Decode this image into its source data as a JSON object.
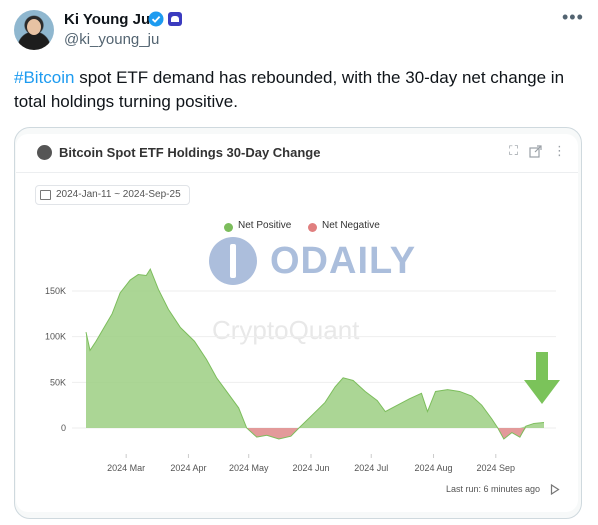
{
  "tweet": {
    "author_name": "Ki Young Ju",
    "handle": "@ki_young_ju",
    "more_icon": "more-horizontal-icon",
    "hashtag": "#Bitcoin",
    "text_rest": " spot ETF demand has rebounded, with the 30-day net change in total holdings turning positive."
  },
  "card": {
    "title": "Bitcoin Spot ETF Holdings 30-Day Change",
    "date_range": "2024-Jan-11 ~ 2024-Sep-25",
    "watermark_brand": "ODAILY",
    "watermark_source": "CryptoQuant",
    "last_run": "Last run: 6 minutes ago",
    "icons": [
      "expand-icon",
      "external-link-icon",
      "kebab-menu-icon"
    ]
  },
  "colors": {
    "positive": "#9ccf82",
    "positive_stroke": "#7cbd5c",
    "negative": "#e08f8f",
    "arrow": "#7bc35a",
    "link": "#1d9bf0"
  },
  "chart_data": {
    "type": "area",
    "title": "Bitcoin Spot ETF Holdings 30-Day Change",
    "legend": [
      "Net Positive",
      "Net Negative"
    ],
    "legend_position": "top-center",
    "x_ticks": [
      "2024 Mar",
      "2024 Apr",
      "2024 May",
      "2024 Jun",
      "2024 Jul",
      "2024 Aug",
      "2024 Sep"
    ],
    "y_ticks": [
      "0",
      "50K",
      "100K",
      "150K"
    ],
    "ylim": [
      -15000,
      185000
    ],
    "grid": "horizontal",
    "series": [
      {
        "name": "Net Positive / Net Negative",
        "points": [
          [
            "2024-02-10",
            105000
          ],
          [
            "2024-02-12",
            85000
          ],
          [
            "2024-02-15",
            95000
          ],
          [
            "2024-02-19",
            110000
          ],
          [
            "2024-02-23",
            125000
          ],
          [
            "2024-02-27",
            148000
          ],
          [
            "2024-03-03",
            162000
          ],
          [
            "2024-03-07",
            168000
          ],
          [
            "2024-03-11",
            167000
          ],
          [
            "2024-03-13",
            174000
          ],
          [
            "2024-03-17",
            152000
          ],
          [
            "2024-03-22",
            130000
          ],
          [
            "2024-03-28",
            110000
          ],
          [
            "2024-04-04",
            95000
          ],
          [
            "2024-04-10",
            75000
          ],
          [
            "2024-04-15",
            55000
          ],
          [
            "2024-04-20",
            40000
          ],
          [
            "2024-04-26",
            22000
          ],
          [
            "2024-04-30",
            0
          ],
          [
            "2024-05-05",
            -10000
          ],
          [
            "2024-05-10",
            -8000
          ],
          [
            "2024-05-16",
            -12000
          ],
          [
            "2024-05-22",
            -9000
          ],
          [
            "2024-05-26",
            0
          ],
          [
            "2024-06-02",
            15000
          ],
          [
            "2024-06-08",
            28000
          ],
          [
            "2024-06-13",
            45000
          ],
          [
            "2024-06-17",
            55000
          ],
          [
            "2024-06-22",
            52000
          ],
          [
            "2024-06-28",
            40000
          ],
          [
            "2024-07-04",
            30000
          ],
          [
            "2024-07-08",
            18000
          ],
          [
            "2024-07-14",
            25000
          ],
          [
            "2024-07-20",
            32000
          ],
          [
            "2024-07-26",
            38000
          ],
          [
            "2024-07-29",
            18000
          ],
          [
            "2024-08-02",
            40000
          ],
          [
            "2024-08-08",
            42000
          ],
          [
            "2024-08-14",
            40000
          ],
          [
            "2024-08-20",
            35000
          ],
          [
            "2024-08-25",
            25000
          ],
          [
            "2024-08-30",
            10000
          ],
          [
            "2024-09-02",
            0
          ],
          [
            "2024-09-05",
            -12000
          ],
          [
            "2024-09-09",
            -5000
          ],
          [
            "2024-09-13",
            -10000
          ],
          [
            "2024-09-16",
            2000
          ],
          [
            "2024-09-20",
            5000
          ],
          [
            "2024-09-25",
            6000
          ]
        ]
      }
    ],
    "annotations": [
      "green down arrow at latest value"
    ]
  }
}
